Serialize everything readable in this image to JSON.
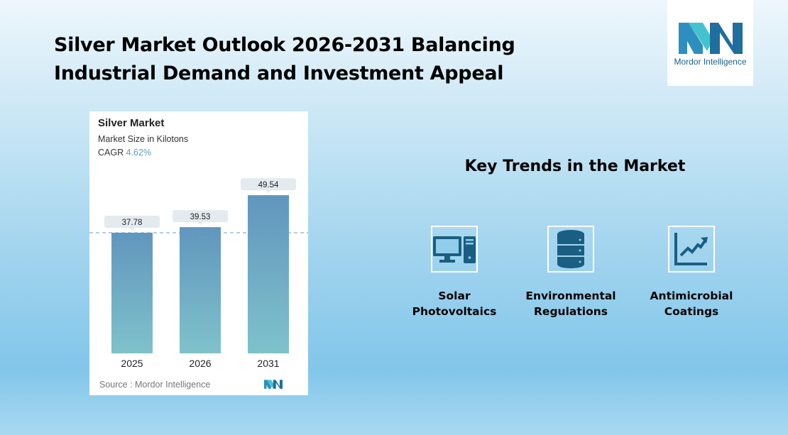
{
  "title": [
    "Silver Market Outlook 2026-2031 Balancing",
    "Industrial Demand and Investment Appeal"
  ],
  "logo": {
    "text": "Mordor Intelligence"
  },
  "chart_data": {
    "type": "bar",
    "title": "Silver Market",
    "subtitle": "Market Size in Kilotons",
    "cagr_label": "CAGR",
    "cagr_value": "4.62%",
    "categories": [
      "2025",
      "2026",
      "2031"
    ],
    "values": [
      37.78,
      39.53,
      49.54
    ],
    "ylim": [
      0,
      55
    ],
    "grid": false,
    "reference_line": 37.78,
    "source": "Source :  Mordor Intelligence",
    "colors": {
      "bar_top": "#6196bd",
      "bar_bottom": "#7fc2cb",
      "cagr": "#5c9cc4"
    }
  },
  "key_trends": {
    "heading": "Key Trends in the Market",
    "items": [
      {
        "line1": "Solar",
        "line2": "Photovoltaics",
        "icon": "computer-icon"
      },
      {
        "line1": "Environmental",
        "line2": "Regulations",
        "icon": "database-icon"
      },
      {
        "line1": "Antimicrobial",
        "line2": "Coatings",
        "icon": "chart-growth-icon"
      }
    ],
    "icon_color": "#1a5e82"
  }
}
